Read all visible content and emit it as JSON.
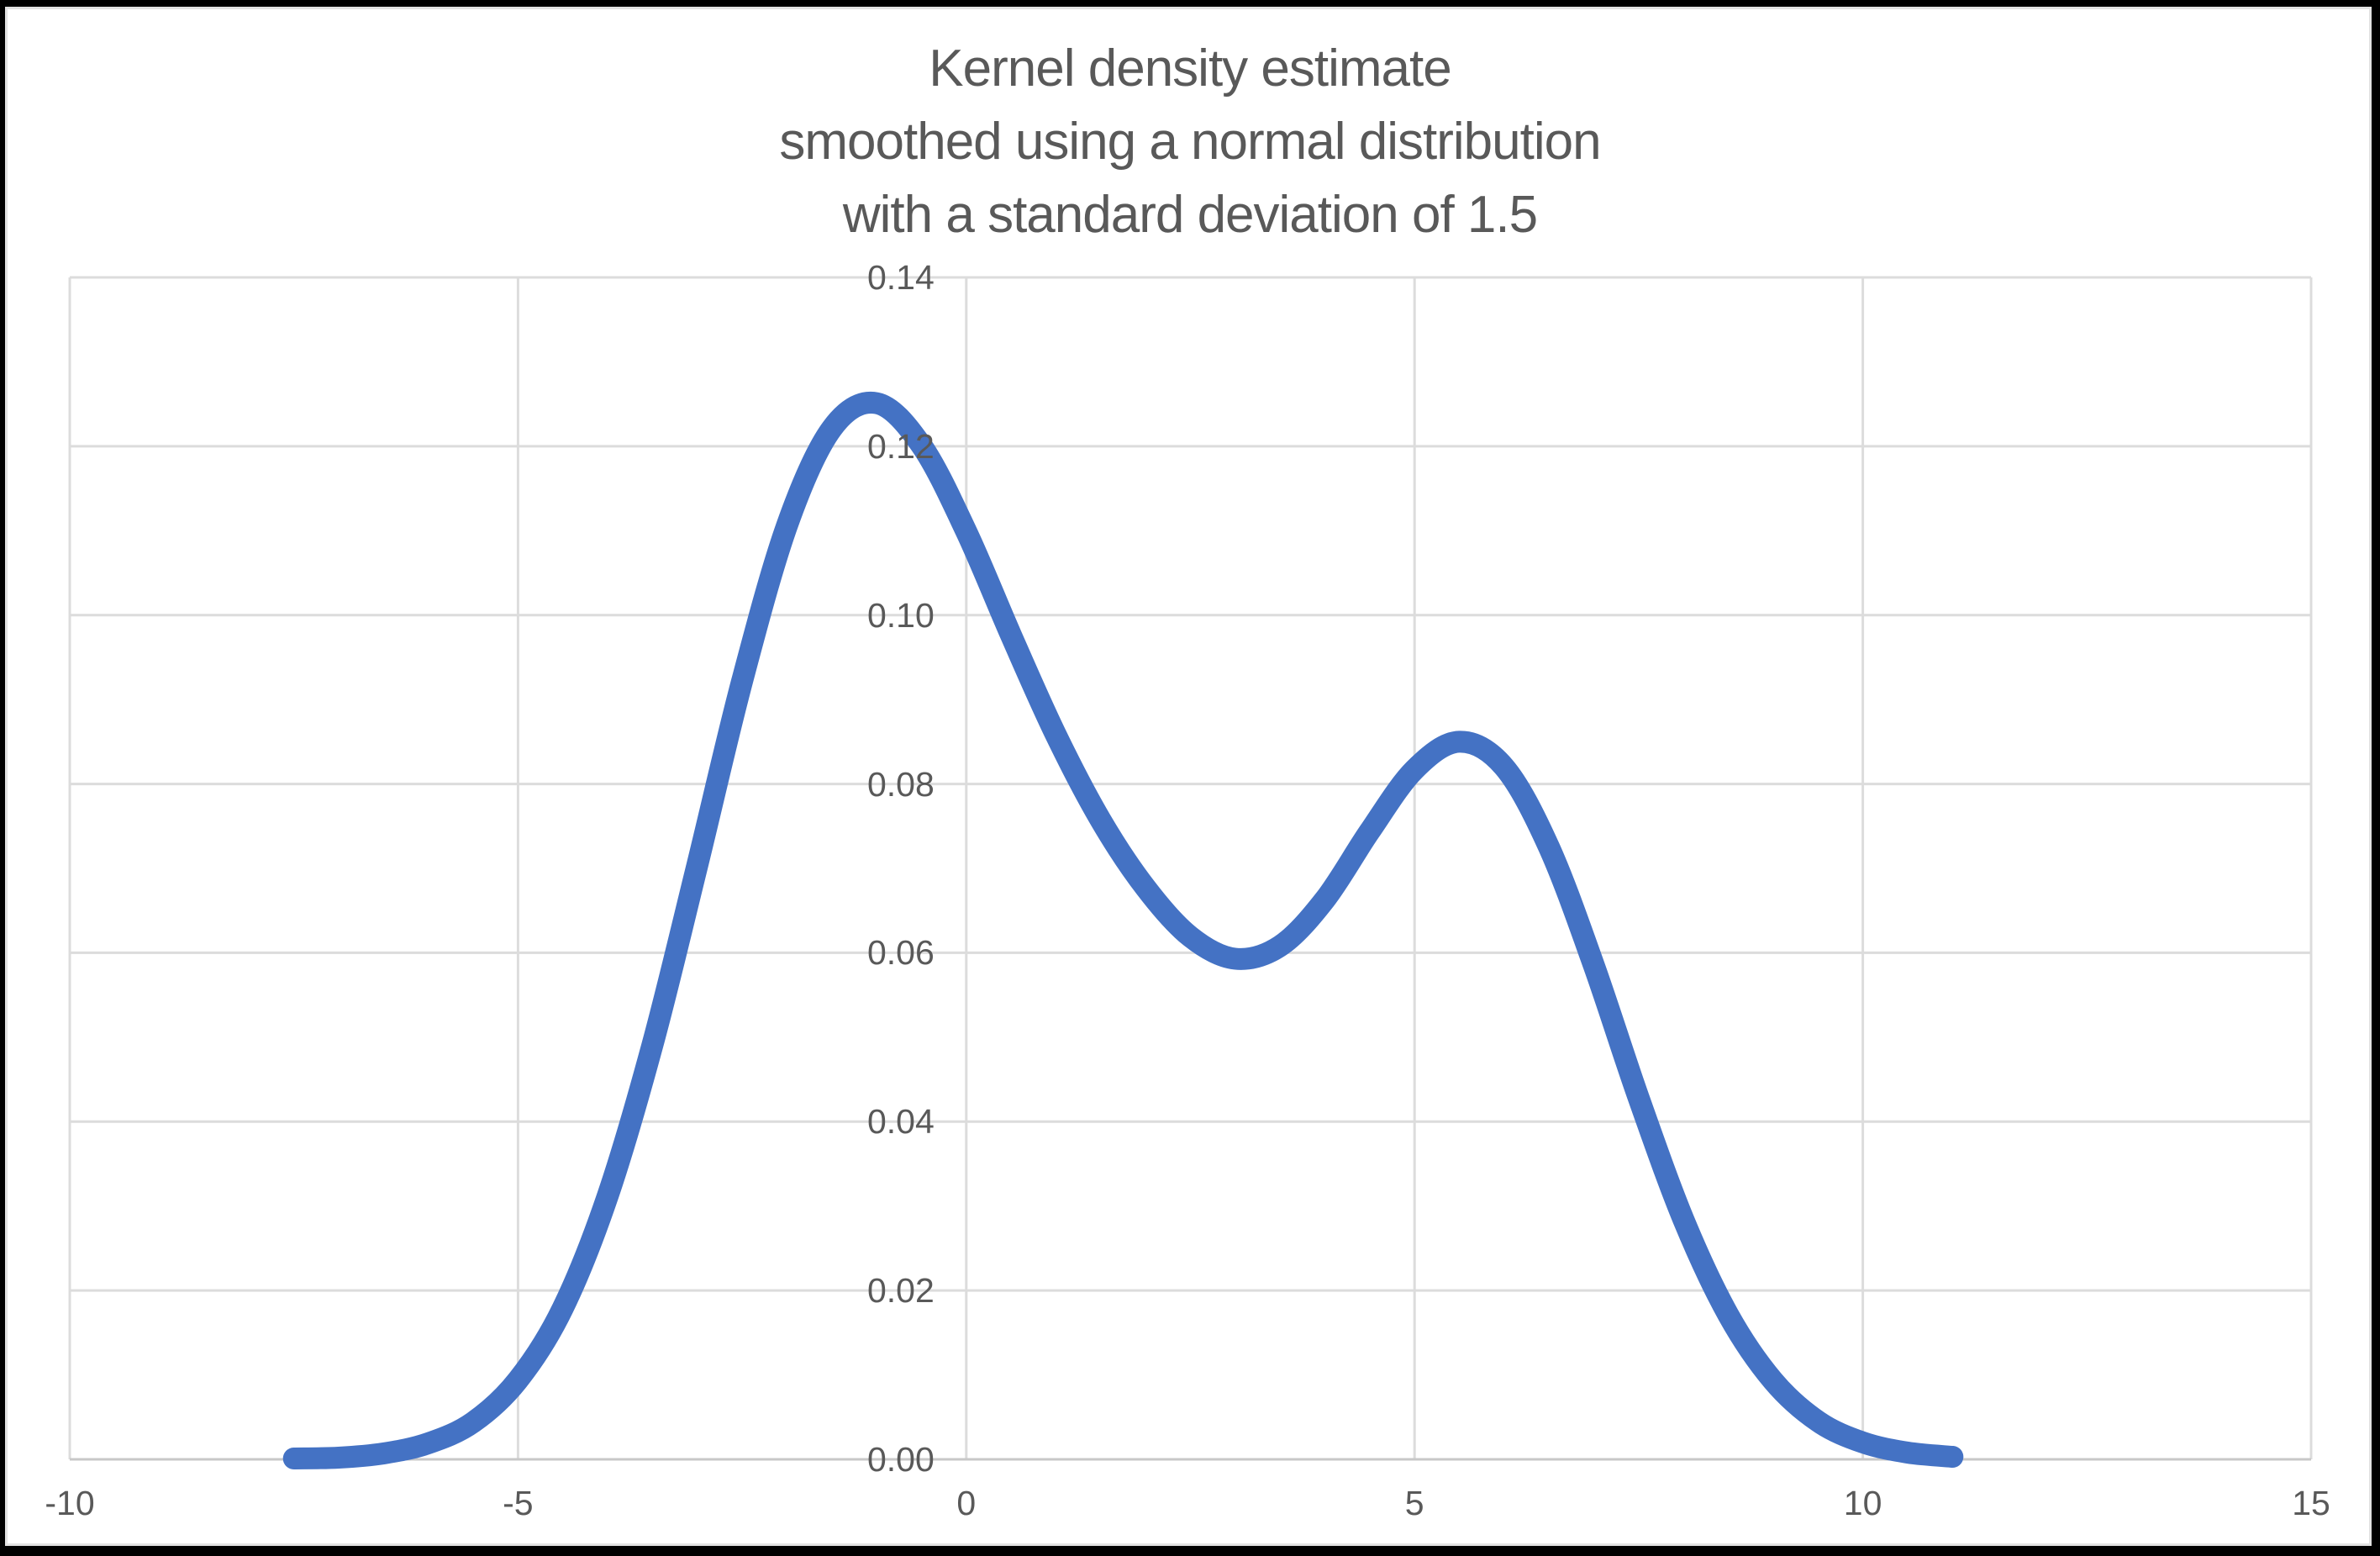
{
  "frame": {
    "border_color": "#000000",
    "inner_border_color": "#e2e2e2",
    "background": "#ffffff"
  },
  "chart": {
    "title": "Kernel density estimate\nsmoothed using a normal distribution\nwith a standard deviation of 1.5",
    "title_color": "#595959",
    "tick_label_color": "#595959",
    "line_color": "#4472c4",
    "gridline_color": "#dcdcdc",
    "axis_line_color": "#c8c8c8"
  },
  "chart_data": {
    "type": "line",
    "title": "Kernel density estimate smoothed using a normal distribution with a standard deviation of 1.5",
    "xlabel": "",
    "ylabel": "",
    "xlim": [
      -10,
      15
    ],
    "ylim": [
      0,
      0.14
    ],
    "grid": true,
    "legend": false,
    "x_ticks": [
      {
        "v": -10,
        "label": "-10"
      },
      {
        "v": -5,
        "label": "-5"
      },
      {
        "v": 0,
        "label": "0"
      },
      {
        "v": 5,
        "label": "5"
      },
      {
        "v": 10,
        "label": "10"
      },
      {
        "v": 15,
        "label": "15"
      }
    ],
    "y_ticks": [
      {
        "v": 0.0,
        "label": "0.00"
      },
      {
        "v": 0.02,
        "label": "0.02"
      },
      {
        "v": 0.04,
        "label": "0.04"
      },
      {
        "v": 0.06,
        "label": "0.06"
      },
      {
        "v": 0.08,
        "label": "0.08"
      },
      {
        "v": 0.1,
        "label": "0.10"
      },
      {
        "v": 0.12,
        "label": "0.12"
      },
      {
        "v": 0.14,
        "label": "0.14"
      }
    ],
    "series": [
      {
        "name": "Kernel density estimate",
        "x": [
          -7.5,
          -7.0,
          -6.5,
          -6.0,
          -5.5,
          -5.0,
          -4.5,
          -4.0,
          -3.5,
          -3.0,
          -2.5,
          -2.0,
          -1.5,
          -1.0,
          -0.5,
          0.0,
          0.5,
          1.0,
          1.5,
          2.0,
          2.5,
          3.0,
          3.5,
          4.0,
          4.5,
          5.0,
          5.5,
          6.0,
          6.5,
          7.0,
          7.5,
          8.0,
          8.5,
          9.0,
          9.5,
          10.0,
          10.5,
          11.0
        ],
        "y": [
          0.0001,
          0.0002,
          0.0007,
          0.0019,
          0.0044,
          0.0094,
          0.0179,
          0.0312,
          0.0491,
          0.0704,
          0.0922,
          0.1106,
          0.1221,
          0.1251,
          0.1201,
          0.1099,
          0.0976,
          0.0858,
          0.0757,
          0.0677,
          0.0619,
          0.0593,
          0.0608,
          0.0663,
          0.0744,
          0.0817,
          0.085,
          0.082,
          0.0725,
          0.0585,
          0.0428,
          0.0284,
          0.0171,
          0.0093,
          0.0045,
          0.002,
          0.0008,
          0.0003
        ]
      }
    ]
  }
}
